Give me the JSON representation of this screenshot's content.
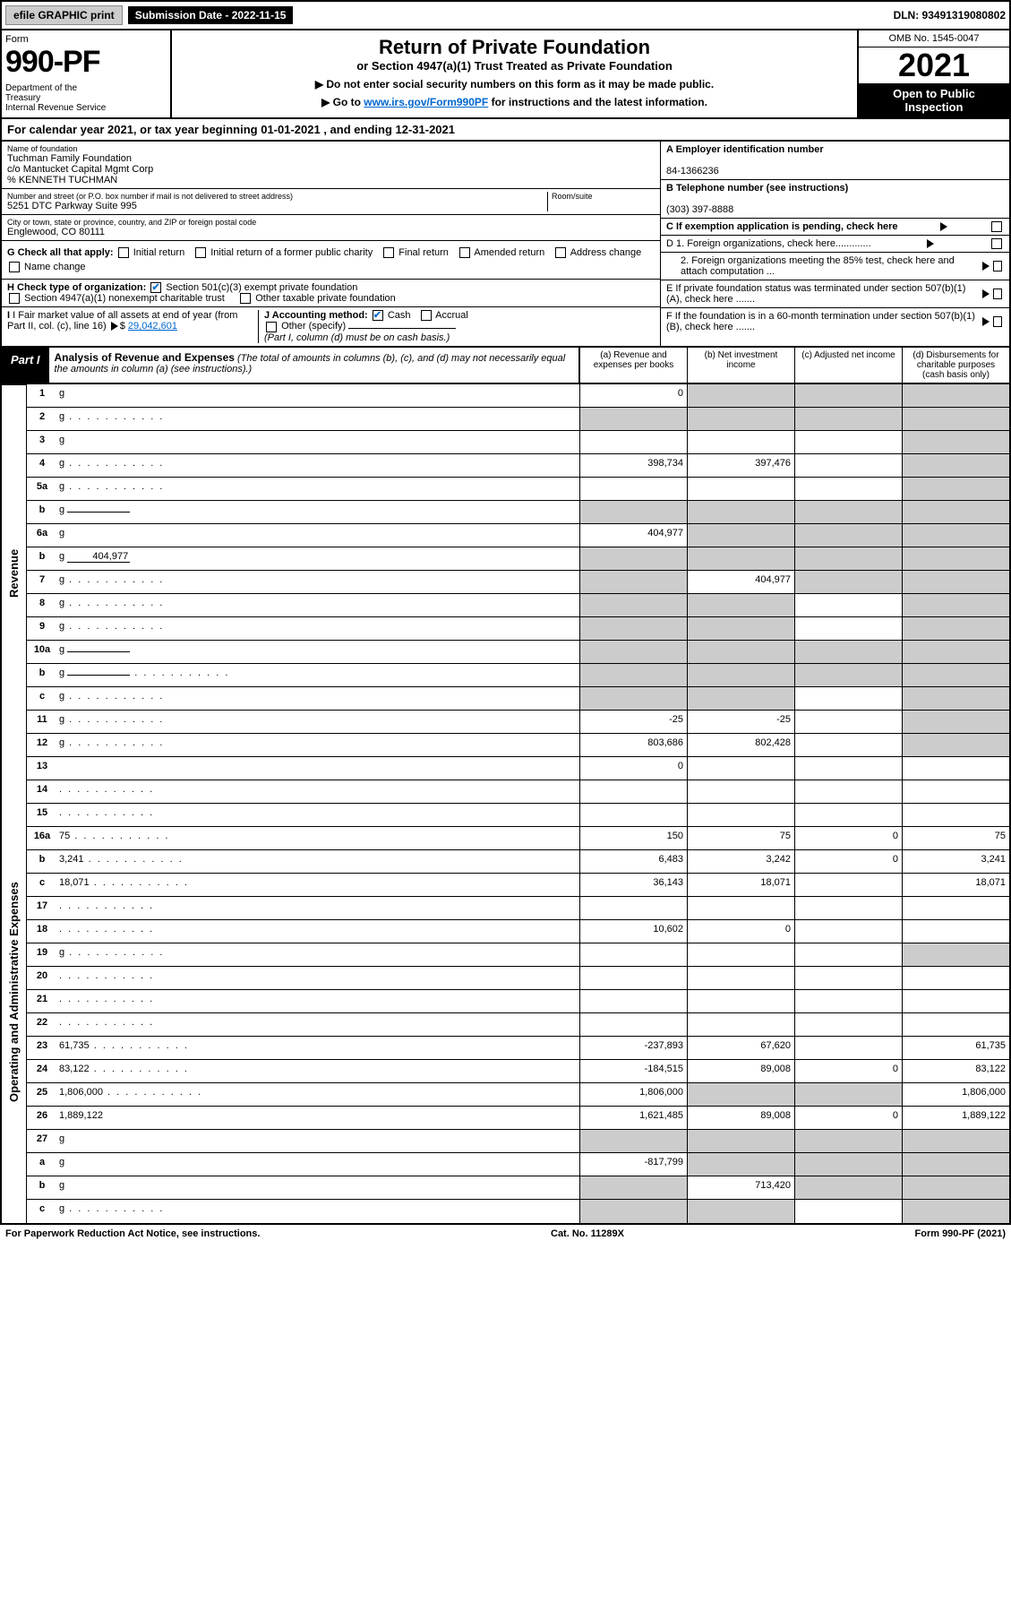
{
  "topbar": {
    "efile": "efile GRAPHIC print",
    "submission": "Submission Date - 2022-11-15",
    "dln": "DLN: 93491319080802"
  },
  "header": {
    "form_word": "Form",
    "form_number": "990-PF",
    "dept": "Department of the Treasury\nInternal Revenue Service",
    "title": "Return of Private Foundation",
    "subtitle": "or Section 4947(a)(1) Trust Treated as Private Foundation",
    "note1": "▶ Do not enter social security numbers on this form as it may be made public.",
    "note2_prefix": "▶ Go to ",
    "note2_link": "www.irs.gov/Form990PF",
    "note2_suffix": " for instructions and the latest information.",
    "omb": "OMB No. 1545-0047",
    "year": "2021",
    "open": "Open to Public Inspection"
  },
  "cal": {
    "text": "For calendar year 2021, or tax year beginning 01-01-2021            , and ending 12-31-2021"
  },
  "info": {
    "name_lbl": "Name of foundation",
    "name1": "Tuchman Family Foundation",
    "name2": "c/o Mantucket Capital Mgmt Corp",
    "name3": "% KENNETH TUCHMAN",
    "addr_lbl": "Number and street (or P.O. box number if mail is not delivered to street address)",
    "addr": "5251 DTC Parkway Suite 995",
    "room_lbl": "Room/suite",
    "city_lbl": "City or town, state or province, country, and ZIP or foreign postal code",
    "city": "Englewood, CO  80111",
    "A_lbl": "A Employer identification number",
    "A_val": "84-1366236",
    "B_lbl": "B Telephone number (see instructions)",
    "B_val": "(303) 397-8888",
    "C_lbl": "C If exemption application is pending, check here",
    "D1": "D 1. Foreign organizations, check here.............",
    "D2": "2. Foreign organizations meeting the 85% test, check here and attach computation ...",
    "E": "E  If private foundation status was terminated under section 507(b)(1)(A), check here .......",
    "F": "F  If the foundation is in a 60-month termination under section 507(b)(1)(B), check here .......",
    "G_lbl": "G Check all that apply:",
    "G_opts": [
      "Initial return",
      "Initial return of a former public charity",
      "Final return",
      "Amended return",
      "Address change",
      "Name change"
    ],
    "H_lbl": "H Check type of organization:",
    "H_opt1": "Section 501(c)(3) exempt private foundation",
    "H_opt2": "Section 4947(a)(1) nonexempt charitable trust",
    "H_opt3": "Other taxable private foundation",
    "I_lbl": "I Fair market value of all assets at end of year (from Part II, col. (c), line 16)",
    "I_val": "29,042,601",
    "J_lbl": "J Accounting method:",
    "J_cash": "Cash",
    "J_accr": "Accrual",
    "J_other": "Other (specify)",
    "J_note": "(Part I, column (d) must be on cash basis.)"
  },
  "part1": {
    "label": "Part I",
    "title": "Analysis of Revenue and Expenses",
    "title_note": "(The total of amounts in columns (b), (c), and (d) may not necessarily equal the amounts in column (a) (see instructions).)",
    "col_a": "(a)  Revenue and expenses per books",
    "col_b": "(b)  Net investment income",
    "col_c": "(c)  Adjusted net income",
    "col_d": "(d)  Disbursements for charitable purposes (cash basis only)"
  },
  "side": {
    "revenue": "Revenue",
    "expenses": "Operating and Administrative Expenses"
  },
  "rows": [
    {
      "n": "1",
      "d": "g",
      "a": "0",
      "b": "g",
      "c": "g"
    },
    {
      "n": "2",
      "d": "g",
      "dots": true,
      "a": "g",
      "b": "g",
      "c": "g"
    },
    {
      "n": "3",
      "d": "g",
      "a": "",
      "b": "",
      "c": ""
    },
    {
      "n": "4",
      "d": "g",
      "dots": true,
      "a": "398,734",
      "b": "397,476",
      "c": ""
    },
    {
      "n": "5a",
      "d": "g",
      "dots": true,
      "a": "",
      "b": "",
      "c": ""
    },
    {
      "n": "b",
      "d": "g",
      "inline": "",
      "a": "g",
      "b": "g",
      "c": "g"
    },
    {
      "n": "6a",
      "d": "g",
      "a": "404,977",
      "b": "g",
      "c": "g"
    },
    {
      "n": "b",
      "d": "g",
      "inline": "404,977",
      "a": "g",
      "b": "g",
      "c": "g"
    },
    {
      "n": "7",
      "d": "g",
      "dots": true,
      "a": "g",
      "b": "404,977",
      "c": "g"
    },
    {
      "n": "8",
      "d": "g",
      "dots": true,
      "a": "g",
      "b": "g",
      "c": ""
    },
    {
      "n": "9",
      "d": "g",
      "dots": true,
      "a": "g",
      "b": "g",
      "c": ""
    },
    {
      "n": "10a",
      "d": "g",
      "inline": "",
      "a": "g",
      "b": "g",
      "c": "g"
    },
    {
      "n": "b",
      "d": "g",
      "dots": true,
      "inline": "",
      "a": "g",
      "b": "g",
      "c": "g"
    },
    {
      "n": "c",
      "d": "g",
      "dots": true,
      "a": "g",
      "b": "g",
      "c": ""
    },
    {
      "n": "11",
      "d": "g",
      "dots": true,
      "a": "-25",
      "b": "-25",
      "c": ""
    },
    {
      "n": "12",
      "d": "g",
      "dots": true,
      "a": "803,686",
      "b": "802,428",
      "c": ""
    },
    {
      "n": "13",
      "d": "",
      "a": "0",
      "b": "",
      "c": ""
    },
    {
      "n": "14",
      "d": "",
      "dots": true,
      "a": "",
      "b": "",
      "c": ""
    },
    {
      "n": "15",
      "d": "",
      "dots": true,
      "a": "",
      "b": "",
      "c": ""
    },
    {
      "n": "16a",
      "d": "75",
      "dots": true,
      "a": "150",
      "b": "75",
      "c": "0"
    },
    {
      "n": "b",
      "d": "3,241",
      "dots": true,
      "a": "6,483",
      "b": "3,242",
      "c": "0"
    },
    {
      "n": "c",
      "d": "18,071",
      "dots": true,
      "a": "36,143",
      "b": "18,071",
      "c": ""
    },
    {
      "n": "17",
      "d": "",
      "dots": true,
      "a": "",
      "b": "",
      "c": ""
    },
    {
      "n": "18",
      "d": "",
      "dots": true,
      "a": "10,602",
      "b": "0",
      "c": ""
    },
    {
      "n": "19",
      "d": "g",
      "dots": true,
      "a": "",
      "b": "",
      "c": ""
    },
    {
      "n": "20",
      "d": "",
      "dots": true,
      "a": "",
      "b": "",
      "c": ""
    },
    {
      "n": "21",
      "d": "",
      "dots": true,
      "a": "",
      "b": "",
      "c": ""
    },
    {
      "n": "22",
      "d": "",
      "dots": true,
      "a": "",
      "b": "",
      "c": ""
    },
    {
      "n": "23",
      "d": "61,735",
      "dots": true,
      "a": "-237,893",
      "b": "67,620",
      "c": ""
    },
    {
      "n": "24",
      "d": "83,122",
      "dots": true,
      "a": "-184,515",
      "b": "89,008",
      "c": "0"
    },
    {
      "n": "25",
      "d": "1,806,000",
      "dots": true,
      "a": "1,806,000",
      "b": "g",
      "c": "g"
    },
    {
      "n": "26",
      "d": "1,889,122",
      "a": "1,621,485",
      "b": "89,008",
      "c": "0"
    },
    {
      "n": "27",
      "d": "g",
      "a": "g",
      "b": "g",
      "c": "g"
    },
    {
      "n": "a",
      "d": "g",
      "a": "-817,799",
      "b": "g",
      "c": "g"
    },
    {
      "n": "b",
      "d": "g",
      "a": "g",
      "b": "713,420",
      "c": "g"
    },
    {
      "n": "c",
      "d": "g",
      "dots": true,
      "a": "g",
      "b": "g",
      "c": ""
    }
  ],
  "footer": {
    "left": "For Paperwork Reduction Act Notice, see instructions.",
    "mid": "Cat. No. 11289X",
    "right": "Form 990-PF (2021)"
  }
}
